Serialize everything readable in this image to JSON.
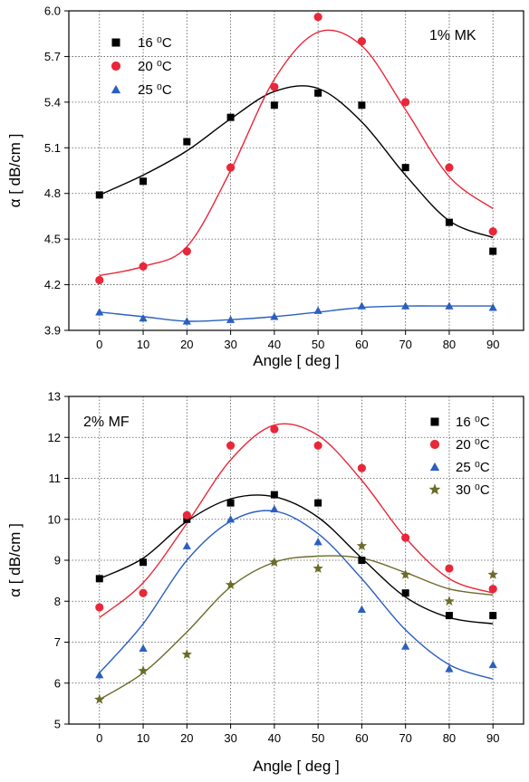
{
  "chart_data": [
    {
      "type": "scatter",
      "annotation": "1% MK",
      "xlabel": "Angle [ deg ]",
      "ylabel": "α [ dB/cm ]",
      "xlim": [
        -7,
        97
      ],
      "ylim": [
        3.9,
        6.0
      ],
      "xticks": [
        0,
        10,
        20,
        30,
        40,
        50,
        60,
        70,
        80,
        90
      ],
      "yticks": [
        3.9,
        4.2,
        4.5,
        4.8,
        5.1,
        5.4,
        5.7,
        6.0
      ],
      "ytick_labels": [
        "3.9",
        "4.2",
        "4.5",
        "4.8",
        "5.1",
        "5.4",
        "5.7",
        "6.0"
      ],
      "grid": true,
      "legend_position": "top-left",
      "x": [
        0,
        10,
        20,
        30,
        40,
        50,
        60,
        70,
        80,
        90
      ],
      "series": [
        {
          "name": "16 ⁰C",
          "marker": "square",
          "color": "#000000",
          "values": [
            4.79,
            4.88,
            5.14,
            5.3,
            5.38,
            5.46,
            5.38,
            4.97,
            4.61,
            4.42
          ],
          "fit": [
            4.79,
            4.92,
            5.08,
            5.29,
            5.47,
            5.49,
            5.27,
            4.92,
            4.62,
            4.51
          ]
        },
        {
          "name": "20 ⁰C",
          "marker": "circle",
          "color": "#e8283a",
          "values": [
            4.23,
            4.32,
            4.42,
            4.97,
            5.5,
            5.96,
            5.8,
            5.4,
            4.97,
            4.55
          ],
          "fit": [
            4.26,
            4.32,
            4.45,
            4.95,
            5.55,
            5.86,
            5.77,
            5.35,
            4.91,
            4.7
          ]
        },
        {
          "name": "25 ⁰C",
          "marker": "triangle",
          "color": "#2b5fc0",
          "values": [
            4.02,
            3.98,
            3.96,
            3.97,
            3.99,
            4.03,
            4.06,
            4.06,
            4.06,
            4.05
          ],
          "fit": [
            4.02,
            3.99,
            3.96,
            3.97,
            3.99,
            4.02,
            4.05,
            4.06,
            4.06,
            4.06
          ]
        }
      ]
    },
    {
      "type": "scatter",
      "annotation": "2% MF",
      "xlabel": "Angle [ deg ]",
      "ylabel": "α [ dB/cm ]",
      "xlim": [
        -7,
        97
      ],
      "ylim": [
        5,
        13
      ],
      "xticks": [
        0,
        10,
        20,
        30,
        40,
        50,
        60,
        70,
        80,
        90
      ],
      "yticks": [
        5,
        6,
        7,
        8,
        9,
        10,
        11,
        12,
        13
      ],
      "ytick_labels": [
        "5",
        "6",
        "7",
        "8",
        "9",
        "10",
        "11",
        "12",
        "13"
      ],
      "grid": true,
      "legend_position": "top-right",
      "x": [
        0,
        10,
        20,
        30,
        40,
        50,
        60,
        70,
        80,
        90
      ],
      "series": [
        {
          "name": "16 ⁰C",
          "marker": "square",
          "color": "#000000",
          "values": [
            8.55,
            8.95,
            10.0,
            10.4,
            10.6,
            10.4,
            9.0,
            8.2,
            7.65,
            7.65
          ],
          "fit": [
            8.55,
            9.05,
            9.95,
            10.5,
            10.55,
            10.05,
            9.05,
            8.1,
            7.6,
            7.45
          ]
        },
        {
          "name": "20 ⁰C",
          "marker": "circle",
          "color": "#e8283a",
          "values": [
            7.85,
            8.2,
            10.1,
            11.8,
            12.2,
            11.8,
            11.25,
            9.55,
            8.8,
            8.3
          ],
          "fit": [
            7.6,
            8.45,
            9.9,
            11.45,
            12.3,
            12.05,
            10.95,
            9.55,
            8.55,
            8.2
          ]
        },
        {
          "name": "25 ⁰C",
          "marker": "triangle",
          "color": "#2b5fc0",
          "values": [
            6.2,
            6.85,
            9.35,
            10.0,
            10.25,
            9.45,
            7.8,
            6.9,
            6.35,
            6.45
          ],
          "fit": [
            6.25,
            7.45,
            9.0,
            9.95,
            10.2,
            9.65,
            8.55,
            7.3,
            6.45,
            6.1
          ]
        },
        {
          "name": "30 ⁰C",
          "marker": "star",
          "color": "#6b6b2a",
          "values": [
            5.6,
            6.3,
            6.7,
            8.4,
            8.95,
            8.8,
            9.35,
            8.65,
            8.0,
            8.65
          ],
          "fit": [
            5.6,
            6.25,
            7.25,
            8.35,
            8.95,
            9.1,
            9.05,
            8.7,
            8.3,
            8.15
          ]
        }
      ]
    }
  ]
}
